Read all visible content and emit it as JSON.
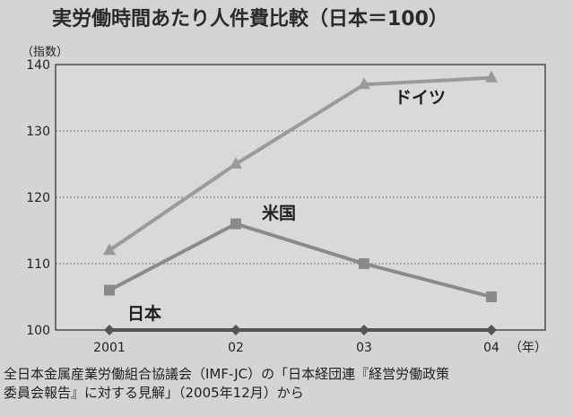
{
  "chart_data": {
    "type": "line",
    "title": "実労働時間あたり人件費比較（日本＝100）",
    "ylabel": "（指数）",
    "xunit": "（年）",
    "categories": [
      "2001",
      "02",
      "03",
      "04"
    ],
    "ylim": [
      100,
      140
    ],
    "yticks": [
      "100",
      "110",
      "120",
      "130",
      "140"
    ],
    "grid": true,
    "series": [
      {
        "name": "ドイツ",
        "marker": "triangle",
        "color": "#9a9a9a",
        "values": [
          112,
          125,
          137,
          138
        ]
      },
      {
        "name": "米国",
        "marker": "square",
        "color": "#8a8a8a",
        "values": [
          106,
          116,
          110,
          105
        ]
      },
      {
        "name": "日本",
        "marker": "diamond",
        "color": "#555555",
        "values": [
          100,
          100,
          100,
          100
        ]
      }
    ]
  },
  "source_note": {
    "line1": "全日本金属産業労働組合協議会（IMF-JC）の「日本経団連『経営労働政策",
    "line2": "委員会報告』に対する見解」（2005年12月）から"
  }
}
